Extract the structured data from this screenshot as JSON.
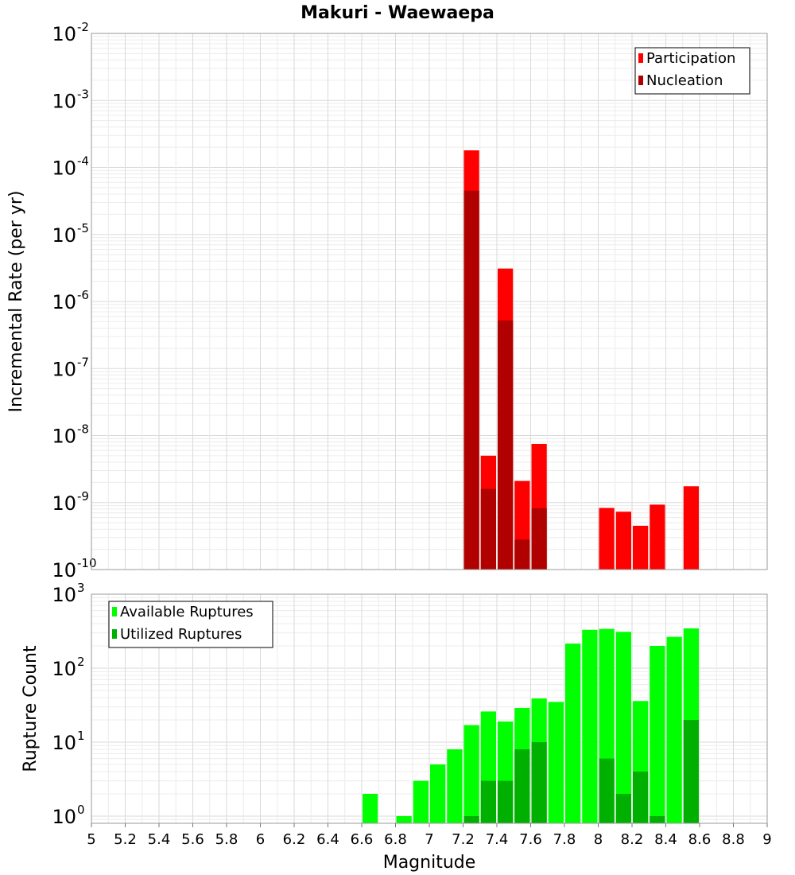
{
  "chart_data": [
    {
      "type": "bar",
      "title": "Makuri - Waewaepa",
      "xlabel": "Magnitude",
      "ylabel": "Incremental Rate (per yr)",
      "ylog": true,
      "xlim": [
        5,
        9
      ],
      "ylim": [
        1e-10,
        0.01
      ],
      "bin_width": 0.1,
      "grid": true,
      "legend_placement": "top-right",
      "x_ticks": [
        "5",
        "5.2",
        "5.4",
        "5.6",
        "5.8",
        "6",
        "6.2",
        "6.4",
        "6.6",
        "6.8",
        "7",
        "7.2",
        "7.4",
        "7.6",
        "7.8",
        "8",
        "8.2",
        "8.4",
        "8.6",
        "8.8",
        "9"
      ],
      "y_ticks": [
        {
          "base": "10",
          "exp": "-10"
        },
        {
          "base": "10",
          "exp": "-9"
        },
        {
          "base": "10",
          "exp": "-8"
        },
        {
          "base": "10",
          "exp": "-7"
        },
        {
          "base": "10",
          "exp": "-6"
        },
        {
          "base": "10",
          "exp": "-5"
        },
        {
          "base": "10",
          "exp": "-4"
        },
        {
          "base": "10",
          "exp": "-3"
        },
        {
          "base": "10",
          "exp": "-2"
        }
      ],
      "series": [
        {
          "name": "Participation",
          "color": "#ff0000",
          "points": [
            [
              7.25,
              0.00018
            ],
            [
              7.35,
              5e-09
            ],
            [
              7.45,
              3.1e-06
            ],
            [
              7.55,
              2.1e-09
            ],
            [
              7.65,
              7.5e-09
            ],
            [
              8.05,
              8.3e-10
            ],
            [
              8.15,
              7.3e-10
            ],
            [
              8.25,
              4.5e-10
            ],
            [
              8.35,
              9.3e-10
            ],
            [
              8.55,
              1.75e-09
            ]
          ]
        },
        {
          "name": "Nucleation",
          "color": "#b00000",
          "points": [
            [
              7.25,
              4.5e-05
            ],
            [
              7.35,
              1.6e-09
            ],
            [
              7.45,
              5.2e-07
            ],
            [
              7.55,
              2.8e-10
            ],
            [
              7.65,
              8.2e-10
            ]
          ]
        }
      ]
    },
    {
      "type": "bar",
      "xlabel": "Magnitude",
      "ylabel": "Rupture Count",
      "ylog": true,
      "xlim": [
        5,
        9
      ],
      "ylim": [
        0.8,
        1000
      ],
      "bin_width": 0.1,
      "grid": true,
      "legend_placement": "top-left",
      "x_ticks": [
        "5",
        "5.2",
        "5.4",
        "5.6",
        "5.8",
        "6",
        "6.2",
        "6.4",
        "6.6",
        "6.8",
        "7",
        "7.2",
        "7.4",
        "7.6",
        "7.8",
        "8",
        "8.2",
        "8.4",
        "8.6",
        "8.8",
        "9"
      ],
      "y_ticks": [
        {
          "base": "10",
          "exp": "0"
        },
        {
          "base": "10",
          "exp": "1"
        },
        {
          "base": "10",
          "exp": "2"
        },
        {
          "base": "10",
          "exp": "3"
        }
      ],
      "series": [
        {
          "name": "Available Ruptures",
          "color": "#00ff00",
          "points": [
            [
              6.65,
              2
            ],
            [
              6.85,
              1
            ],
            [
              6.95,
              3
            ],
            [
              7.05,
              5
            ],
            [
              7.15,
              8
            ],
            [
              7.25,
              17
            ],
            [
              7.35,
              26
            ],
            [
              7.45,
              19
            ],
            [
              7.55,
              29
            ],
            [
              7.65,
              39
            ],
            [
              7.75,
              35
            ],
            [
              7.85,
              215
            ],
            [
              7.95,
              330
            ],
            [
              8.05,
              340
            ],
            [
              8.15,
              310
            ],
            [
              8.25,
              36
            ],
            [
              8.35,
              200
            ],
            [
              8.45,
              265
            ],
            [
              8.55,
              345
            ]
          ]
        },
        {
          "name": "Utilized Ruptures",
          "color": "#00b000",
          "points": [
            [
              7.25,
              1
            ],
            [
              7.35,
              3
            ],
            [
              7.45,
              3
            ],
            [
              7.55,
              8
            ],
            [
              7.65,
              10
            ],
            [
              8.05,
              6
            ],
            [
              8.15,
              2
            ],
            [
              8.25,
              4
            ],
            [
              8.35,
              1
            ],
            [
              8.55,
              20
            ]
          ]
        }
      ]
    }
  ]
}
